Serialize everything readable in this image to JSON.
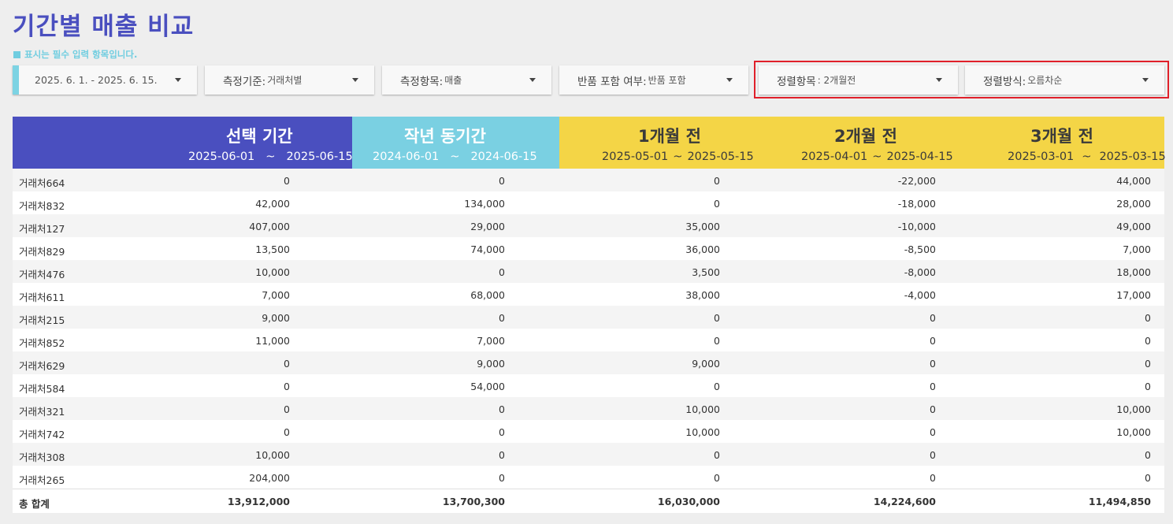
{
  "title": "기간별 매출 비교",
  "required_note": "표시는 필수 입력 항목입니다.",
  "filters": {
    "date_range": "2025. 6. 1. - 2025. 6. 15.",
    "measure_basis": {
      "label": "측정기준:",
      "value": "거래처별"
    },
    "measure_item": {
      "label": "측정항목:",
      "value": "매출"
    },
    "returns": {
      "label": "반품 포함 여부:",
      "value": "반품 포함"
    },
    "sort_item": {
      "label": "정렬항목",
      "value": ": 2개월전"
    },
    "sort_order": {
      "label": "정렬방식:",
      "value": "오름차순"
    }
  },
  "colors": {
    "primary": "#4a4fbf",
    "cyan": "#7ad0e2",
    "yellow": "#f4d546",
    "highlight": "#e0202a"
  },
  "table": {
    "headers": [
      {
        "title": "선택 기간",
        "start": "2025-06-01",
        "tilde": "~",
        "end": "2025-06-15"
      },
      {
        "title": "작년 동기간",
        "start": "2024-06-01",
        "tilde": "~",
        "end": "2024-06-15"
      },
      {
        "title": "1개월 전",
        "start": "2025-05-01",
        "tilde": "~",
        "end": "2025-05-15"
      },
      {
        "title": "2개월 전",
        "start": "2025-04-01",
        "tilde": "~",
        "end": "2025-04-15"
      },
      {
        "title": "3개월 전",
        "start": "2025-03-01",
        "tilde": "~",
        "end": "2025-03-15"
      }
    ],
    "rows": [
      {
        "name": "거래처664",
        "v": [
          "0",
          "0",
          "0",
          "-22,000",
          "44,000"
        ]
      },
      {
        "name": "거래처832",
        "v": [
          "42,000",
          "134,000",
          "0",
          "-18,000",
          "28,000"
        ]
      },
      {
        "name": "거래처127",
        "v": [
          "407,000",
          "29,000",
          "35,000",
          "-10,000",
          "49,000"
        ]
      },
      {
        "name": "거래처829",
        "v": [
          "13,500",
          "74,000",
          "36,000",
          "-8,500",
          "7,000"
        ]
      },
      {
        "name": "거래처476",
        "v": [
          "10,000",
          "0",
          "3,500",
          "-8,000",
          "18,000"
        ]
      },
      {
        "name": "거래처611",
        "v": [
          "7,000",
          "68,000",
          "38,000",
          "-4,000",
          "17,000"
        ]
      },
      {
        "name": "거래처215",
        "v": [
          "9,000",
          "0",
          "0",
          "0",
          "0"
        ]
      },
      {
        "name": "거래처852",
        "v": [
          "11,000",
          "7,000",
          "0",
          "0",
          "0"
        ]
      },
      {
        "name": "거래처629",
        "v": [
          "0",
          "9,000",
          "9,000",
          "0",
          "0"
        ]
      },
      {
        "name": "거래처584",
        "v": [
          "0",
          "54,000",
          "0",
          "0",
          "0"
        ]
      },
      {
        "name": "거래처321",
        "v": [
          "0",
          "0",
          "10,000",
          "0",
          "10,000"
        ]
      },
      {
        "name": "거래처742",
        "v": [
          "0",
          "0",
          "10,000",
          "0",
          "10,000"
        ]
      },
      {
        "name": "거래처308",
        "v": [
          "10,000",
          "0",
          "0",
          "0",
          "0"
        ]
      },
      {
        "name": "거래처265",
        "v": [
          "204,000",
          "0",
          "0",
          "0",
          "0"
        ]
      }
    ],
    "total": {
      "name": "총 합계",
      "v": [
        "13,912,000",
        "13,700,300",
        "16,030,000",
        "14,224,600",
        "11,494,850"
      ]
    }
  }
}
